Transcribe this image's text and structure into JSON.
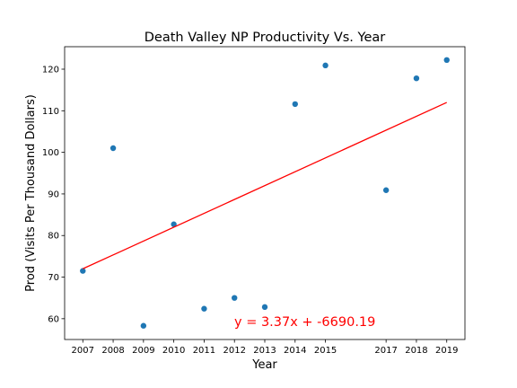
{
  "chart_data": {
    "type": "scatter",
    "title": "Death Valley NP Productivity Vs. Year",
    "x_label": "Year",
    "y_label": "Prod (Visits Per Thousand Dollars)",
    "x": [
      2007,
      2008,
      2009,
      2010,
      2011,
      2012,
      2013,
      2014,
      2015,
      2017,
      2018,
      2019
    ],
    "values": [
      71.5,
      101.0,
      58.3,
      82.7,
      62.4,
      65.0,
      62.8,
      111.6,
      120.9,
      90.9,
      117.8,
      122.2
    ],
    "color": "#1f77b4",
    "fit_line": {
      "x": [
        2007,
        2019
      ],
      "values": [
        72.0,
        112.0
      ],
      "color": "#ff0000"
    },
    "annotation": "y = 3.37x + -6690.19",
    "annotation_color": "#ff0000",
    "xlim": [
      2006.4,
      2019.6
    ],
    "xticks": [
      2007,
      2008,
      2009,
      2010,
      2011,
      2012,
      2013,
      2014,
      2015,
      2017,
      2018,
      2019
    ],
    "ylim": [
      55.0,
      125.4
    ],
    "yticks": [
      60,
      70,
      80,
      90,
      100,
      110,
      120
    ],
    "grid": false
  }
}
